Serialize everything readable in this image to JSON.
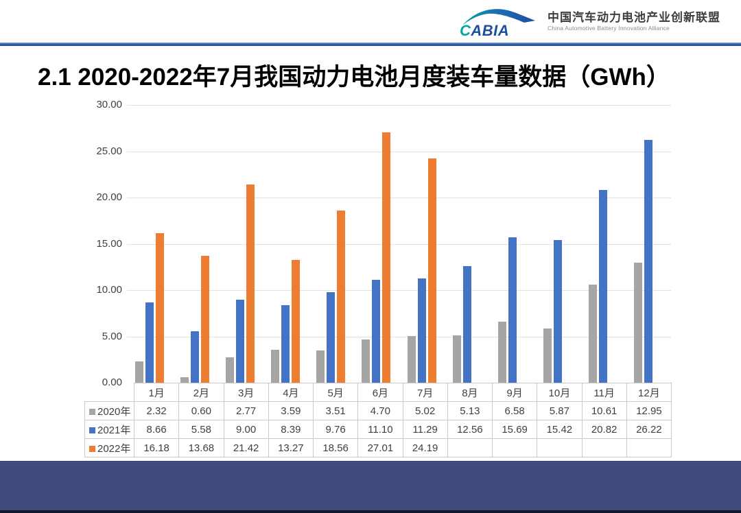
{
  "header": {
    "logo": {
      "abbr": "CABIA",
      "name_zh": "中国汽车动力电池产业创新联盟",
      "name_en": "China Automotive Battery Innovation Alliance",
      "teal": "#00a79d",
      "blue": "#1d4f9e"
    },
    "accent_color": "#2e55a0"
  },
  "title": "2.1 2020-2022年7月我国动力电池月度装车量数据（GWh）",
  "chart_data": {
    "type": "bar",
    "title": "2.1 2020-2022年7月我国动力电池月度装车量数据（GWh）",
    "unit": "GWh",
    "categories": [
      "1月",
      "2月",
      "3月",
      "4月",
      "5月",
      "6月",
      "7月",
      "8月",
      "9月",
      "10月",
      "11月",
      "12月"
    ],
    "series": [
      {
        "name": "2020年",
        "color": "#a5a5a5",
        "values": [
          2.32,
          0.6,
          2.77,
          3.59,
          3.51,
          4.7,
          5.02,
          5.13,
          6.58,
          5.87,
          10.61,
          12.95
        ]
      },
      {
        "name": "2021年",
        "color": "#4472c4",
        "values": [
          8.66,
          5.58,
          9.0,
          8.39,
          9.76,
          11.1,
          11.29,
          12.56,
          15.69,
          15.42,
          20.82,
          26.22
        ]
      },
      {
        "name": "2022年",
        "color": "#ed7d31",
        "values": [
          16.18,
          13.68,
          21.42,
          13.27,
          18.56,
          27.01,
          24.19,
          null,
          null,
          null,
          null,
          null
        ]
      }
    ],
    "xlabel": "",
    "ylabel": "",
    "ylim": [
      0,
      30
    ],
    "ytick_step": 5,
    "ytick_labels": [
      "0.00",
      "5.00",
      "10.00",
      "15.00",
      "20.00",
      "25.00",
      "30.00"
    ],
    "grid": true,
    "gridline_color": "#e2e2e2",
    "legend_position": "table-rows-left",
    "data_table_shown": true
  },
  "footer": {
    "bar_color": "#3f4c7d"
  }
}
